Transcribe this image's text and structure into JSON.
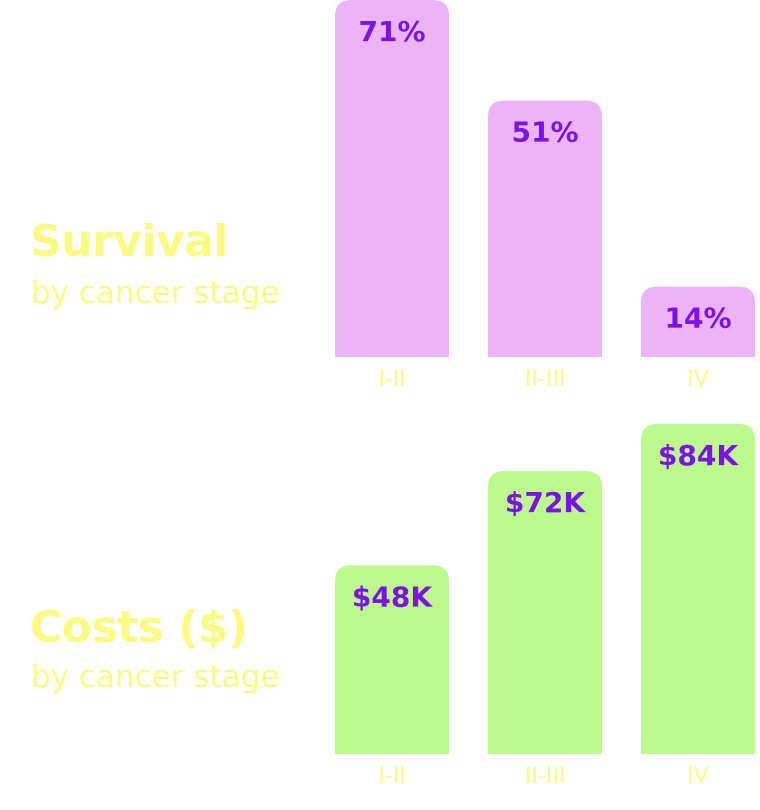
{
  "colors": {
    "heading": "#fbfb84",
    "label_text": "#7a12ea",
    "survival_bar": "#ecb4f7",
    "costs_bar": "#bdf98c"
  },
  "chart_data": [
    {
      "type": "bar",
      "title": "Survival",
      "subtitle": "by cancer stage",
      "categories": [
        "I-II",
        "II-III",
        "IV"
      ],
      "values": [
        71,
        51,
        14
      ],
      "value_labels": [
        "71%",
        "51%",
        "14%"
      ],
      "ylim": [
        0,
        71
      ],
      "grid": false,
      "color": "#ecb4f7"
    },
    {
      "type": "bar",
      "title": "Costs ($)",
      "subtitle": "by cancer stage",
      "categories": [
        "I-II",
        "II-III",
        "IV"
      ],
      "values": [
        48,
        72,
        84
      ],
      "value_labels": [
        "$48K",
        "$72K",
        "$84K"
      ],
      "ylim": [
        0,
        84
      ],
      "grid": false,
      "color": "#bdf98c"
    }
  ]
}
